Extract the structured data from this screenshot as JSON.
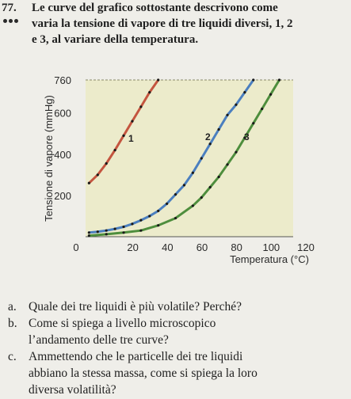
{
  "exercise": {
    "number": "77.",
    "prompt_lines": [
      "Le curve del grafico sottostante descrivono come",
      "varia la tensione di vapore di tre liquidi diversi, 1, 2",
      "e 3, al variare della temperatura."
    ]
  },
  "chart_data": {
    "type": "line",
    "xlabel": "Temperatura (°C)",
    "ylabel": "Tensione di vapore (mmHg)",
    "xlim": [
      0,
      120
    ],
    "ylim": [
      0,
      760
    ],
    "x_ticks": [
      "0",
      "20",
      "40",
      "60",
      "80",
      "100",
      "120"
    ],
    "y_ticks": [
      "200",
      "400",
      "600",
      "760"
    ],
    "reference_line": 760,
    "series": [
      {
        "name": "1",
        "color": "#c4553f",
        "x": [
          0,
          5,
          10,
          15,
          20,
          25,
          30,
          35,
          40
        ],
        "y": [
          260,
          300,
          355,
          420,
          490,
          560,
          630,
          700,
          760
        ]
      },
      {
        "name": "2",
        "color": "#4b7fbf",
        "x": [
          0,
          5,
          10,
          15,
          20,
          25,
          30,
          35,
          40,
          45,
          50,
          55,
          60,
          65,
          70,
          75,
          80,
          85,
          90,
          95
        ],
        "y": [
          20,
          24,
          30,
          38,
          48,
          62,
          80,
          100,
          125,
          160,
          205,
          250,
          310,
          380,
          450,
          520,
          590,
          640,
          700,
          760
        ]
      },
      {
        "name": "3",
        "color": "#4e8e3d",
        "x": [
          0,
          10,
          20,
          30,
          40,
          50,
          60,
          65,
          70,
          75,
          80,
          85,
          90,
          95,
          100,
          105,
          110
        ],
        "y": [
          5,
          12,
          20,
          30,
          55,
          90,
          150,
          190,
          240,
          290,
          350,
          410,
          480,
          550,
          620,
          690,
          760
        ]
      }
    ],
    "curve_labels": [
      "1",
      "2",
      "3"
    ]
  },
  "questions": [
    {
      "letter": "a.",
      "lines": [
        "Quale dei tre liquidi è più volatile? Perché?"
      ]
    },
    {
      "letter": "b.",
      "lines": [
        "Come si spiega a livello microscopico",
        "l’andamento delle tre curve?"
      ]
    },
    {
      "letter": "c.",
      "lines": [
        "Ammettendo che le particelle dei tre liquidi",
        "abbiano la stessa massa, come si spiega la loro",
        "diversa volatilità?"
      ]
    }
  ]
}
